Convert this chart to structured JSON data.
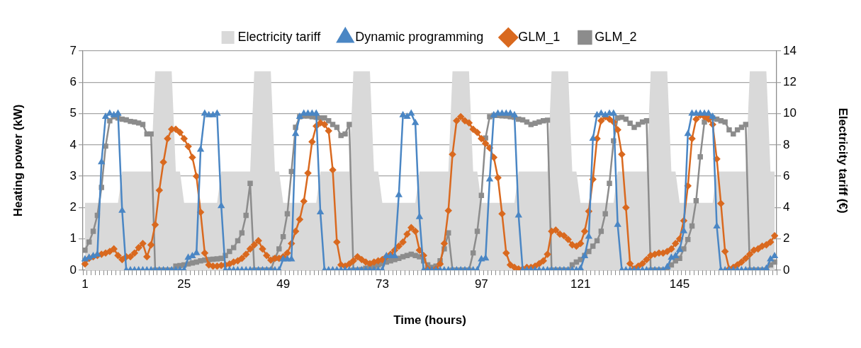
{
  "chart_data": {
    "type": "line",
    "xlabel": "Time (hours)",
    "ylabel": "Heating power (kW)",
    "y2label": "Electricity tariff (€)",
    "categories": [
      "1",
      null,
      null,
      null,
      null,
      null,
      null,
      null,
      null,
      null,
      null,
      null,
      null,
      null,
      null,
      null,
      null,
      null,
      null,
      null,
      null,
      null,
      null,
      null,
      "25",
      null,
      null,
      null,
      null,
      null,
      null,
      null,
      null,
      null,
      null,
      null,
      null,
      null,
      null,
      null,
      null,
      null,
      null,
      null,
      null,
      null,
      null,
      null,
      "49",
      null,
      null,
      null,
      null,
      null,
      null,
      null,
      null,
      null,
      null,
      null,
      null,
      null,
      null,
      null,
      null,
      null,
      null,
      null,
      null,
      null,
      null,
      null,
      "73",
      null,
      null,
      null,
      null,
      null,
      null,
      null,
      null,
      null,
      null,
      null,
      null,
      null,
      null,
      null,
      null,
      null,
      null,
      null,
      null,
      null,
      null,
      null,
      "97",
      null,
      null,
      null,
      null,
      null,
      null,
      null,
      null,
      null,
      null,
      null,
      null,
      null,
      null,
      null,
      null,
      null,
      null,
      null,
      null,
      null,
      null,
      null,
      "121",
      null,
      null,
      null,
      null,
      null,
      null,
      null,
      null,
      null,
      null,
      null,
      null,
      null,
      null,
      null,
      null,
      null,
      null,
      null,
      null,
      null,
      null,
      null,
      "145",
      null,
      null,
      null,
      null,
      null,
      null,
      null,
      null,
      null,
      null,
      null,
      null,
      null,
      null,
      null,
      null,
      null,
      null,
      null,
      null,
      null,
      null,
      null
    ],
    "ylim": [
      0,
      7
    ],
    "yticks": [
      0,
      1,
      2,
      3,
      4,
      5,
      6,
      7
    ],
    "y2lim": [
      0,
      14
    ],
    "y2ticks": [
      0,
      2,
      4,
      6,
      8,
      10,
      12,
      14
    ],
    "grid": "y",
    "legend": "top",
    "series": [
      {
        "name": "Electricity tariff",
        "type": "area",
        "axis": "y2",
        "color": "#d9d9d9",
        "values": [
          4.3,
          4.3,
          4.3,
          4.3,
          4.3,
          4.3,
          4.3,
          4.3,
          4.3,
          6.3,
          6.3,
          6.3,
          6.3,
          6.3,
          6.3,
          6.3,
          6.3,
          12.7,
          12.7,
          12.7,
          12.7,
          12.7,
          6.3,
          6.3,
          4.3,
          4.3,
          4.3,
          4.3,
          4.3,
          4.3,
          4.3,
          4.3,
          4.3,
          6.3,
          6.3,
          6.3,
          6.3,
          6.3,
          6.3,
          6.3,
          6.3,
          12.7,
          12.7,
          12.7,
          12.7,
          12.7,
          6.3,
          6.3,
          4.3,
          4.3,
          4.3,
          4.3,
          4.3,
          4.3,
          4.3,
          4.3,
          4.3,
          6.3,
          6.3,
          6.3,
          6.3,
          6.3,
          6.3,
          6.3,
          6.3,
          12.7,
          12.7,
          12.7,
          12.7,
          12.7,
          6.3,
          6.3,
          4.3,
          4.3,
          4.3,
          4.3,
          4.3,
          4.3,
          4.3,
          4.3,
          4.3,
          6.3,
          6.3,
          6.3,
          6.3,
          6.3,
          6.3,
          6.3,
          6.3,
          12.7,
          12.7,
          12.7,
          12.7,
          12.7,
          6.3,
          6.3,
          4.3,
          4.3,
          4.3,
          4.3,
          4.3,
          4.3,
          4.3,
          4.3,
          4.3,
          6.3,
          6.3,
          6.3,
          6.3,
          6.3,
          6.3,
          6.3,
          6.3,
          12.7,
          12.7,
          12.7,
          12.7,
          12.7,
          6.3,
          6.3,
          4.3,
          4.3,
          4.3,
          4.3,
          4.3,
          4.3,
          4.3,
          4.3,
          4.3,
          6.3,
          6.3,
          6.3,
          6.3,
          6.3,
          6.3,
          6.3,
          6.3,
          12.7,
          12.7,
          12.7,
          12.7,
          12.7,
          6.3,
          6.3,
          4.3,
          4.3,
          4.3,
          4.3,
          4.3,
          4.3,
          4.3,
          4.3,
          4.3,
          6.3,
          6.3,
          6.3,
          6.3,
          6.3,
          6.3,
          6.3,
          6.3,
          12.7,
          12.7,
          12.7,
          12.7,
          12.7,
          6.3,
          6.3
        ]
      },
      {
        "name": "Dynamic programming",
        "marker": "triangle",
        "color": "#4a86c4",
        "values": [
          0.35,
          0.4,
          0.45,
          0.5,
          3.45,
          4.9,
          5.0,
          4.95,
          5.0,
          1.9,
          0,
          0,
          0,
          0,
          0,
          0,
          0,
          0,
          0,
          0,
          0,
          0,
          0,
          0,
          0,
          0.4,
          0.45,
          0.55,
          3.85,
          5.0,
          4.95,
          4.95,
          5.0,
          2.05,
          0,
          0,
          0,
          0,
          0,
          0,
          0,
          0,
          0,
          0,
          0,
          0,
          0,
          0,
          0.35,
          0.35,
          0.35,
          4.35,
          4.9,
          5.0,
          5.0,
          5.0,
          5.0,
          1.85,
          0,
          0,
          0,
          0,
          0,
          0,
          0,
          0,
          0,
          0,
          0,
          0,
          0,
          0,
          0,
          0.45,
          0.45,
          0.45,
          2.4,
          4.95,
          4.9,
          5.0,
          4.7,
          1.7,
          0,
          0,
          0,
          0,
          0,
          0,
          0,
          0,
          0,
          0,
          0,
          0,
          0,
          0,
          0.35,
          0.38,
          2.9,
          4.95,
          5.0,
          5.0,
          5.0,
          5.0,
          4.95,
          1.75,
          0,
          0,
          0,
          0,
          0,
          0,
          0,
          0,
          0,
          0,
          0,
          0,
          0,
          0,
          0.05,
          0.45,
          1.07,
          4.2,
          4.95,
          5.0,
          4.95,
          5.0,
          5.0,
          1.45,
          0,
          0,
          0,
          0,
          0,
          0,
          0,
          0,
          0,
          0,
          0,
          0.1,
          0.4,
          0.45,
          0.65,
          1.25,
          4.35,
          5.0,
          5.0,
          5.0,
          5.0,
          5.0,
          4.9,
          1.4,
          0,
          0,
          0,
          0,
          0,
          0,
          0,
          0,
          0,
          0,
          0,
          0.05,
          0.35,
          0.45
        ]
      },
      {
        "name": "GLM_1",
        "marker": "diamond",
        "color": "#d9691f",
        "values": [
          0.2,
          0.38,
          0.43,
          0.47,
          0.51,
          0.55,
          0.6,
          0.68,
          0.47,
          0.34,
          0.43,
          0.43,
          0.55,
          0.72,
          0.85,
          0.43,
          0.81,
          1.45,
          2.55,
          3.45,
          4.2,
          4.5,
          4.5,
          4.4,
          4.2,
          3.95,
          3.6,
          3.0,
          1.85,
          0.55,
          0.17,
          0.13,
          0.13,
          0.15,
          0.17,
          0.2,
          0.26,
          0.3,
          0.38,
          0.51,
          0.68,
          0.81,
          0.94,
          0.68,
          0.47,
          0.32,
          0.38,
          0.38,
          0.43,
          0.55,
          0.85,
          1.24,
          1.62,
          2.2,
          3.1,
          4.1,
          4.6,
          4.7,
          4.65,
          4.45,
          3.2,
          0.9,
          0.17,
          0.13,
          0.2,
          0.3,
          0.43,
          0.34,
          0.26,
          0.21,
          0.26,
          0.3,
          0.34,
          0.43,
          0.51,
          0.64,
          0.77,
          0.9,
          1.15,
          1.36,
          1.24,
          0.64,
          0.47,
          0.04,
          0,
          0.04,
          0.2,
          0.85,
          1.9,
          3.7,
          4.77,
          4.9,
          4.77,
          4.7,
          4.5,
          4.4,
          4.2,
          4.05,
          3.9,
          3.6,
          2.95,
          1.8,
          0.55,
          0.17,
          0.09,
          0.04,
          0.04,
          0.09,
          0.09,
          0.13,
          0.21,
          0.3,
          0.51,
          1.24,
          1.28,
          1.15,
          1.1,
          0.98,
          0.81,
          0.77,
          0.85,
          1.24,
          1.88,
          2.9,
          4.2,
          4.77,
          4.9,
          4.82,
          4.73,
          4.48,
          3.7,
          2.0,
          0.21,
          0.04,
          0.13,
          0.21,
          0.34,
          0.47,
          0.51,
          0.55,
          0.55,
          0.6,
          0.68,
          0.85,
          1.0,
          1.58,
          2.69,
          4.2,
          4.82,
          4.95,
          4.9,
          4.82,
          4.65,
          3.55,
          2.13,
          0.6,
          0.04,
          0.09,
          0.17,
          0.26,
          0.38,
          0.51,
          0.64,
          0.68,
          0.77,
          0.81,
          0.9,
          1.1
        ]
      },
      {
        "name": "GLM_2",
        "marker": "square",
        "color": "#8c8c8c",
        "values": [
          0.64,
          0.9,
          1.24,
          1.75,
          2.64,
          3.96,
          4.77,
          4.9,
          4.86,
          4.82,
          4.8,
          4.75,
          4.73,
          4.7,
          4.65,
          4.35,
          4.35,
          0,
          0,
          0,
          0,
          0,
          0.13,
          0.15,
          0.17,
          0.2,
          0.23,
          0.26,
          0.3,
          0.32,
          0.34,
          0.35,
          0.36,
          0.38,
          0.47,
          0.6,
          0.72,
          0.94,
          1.19,
          1.75,
          2.77,
          0,
          0,
          0,
          0,
          0,
          0.38,
          0.68,
          1.07,
          1.8,
          3.15,
          4.56,
          4.9,
          4.92,
          4.92,
          4.9,
          4.88,
          4.86,
          4.86,
          4.77,
          4.65,
          4.56,
          4.3,
          4.35,
          4.65,
          0,
          0,
          0.02,
          0.06,
          0.1,
          0.13,
          0.17,
          0.21,
          0.26,
          0.3,
          0.34,
          0.38,
          0.43,
          0.47,
          0.51,
          0.47,
          0.43,
          0.3,
          0.17,
          0.09,
          0.13,
          0.3,
          0.68,
          1.19,
          0,
          0,
          0,
          0,
          0,
          0.55,
          1.24,
          2.39,
          4.22,
          4.9,
          4.94,
          4.94,
          4.93,
          4.92,
          4.9,
          4.88,
          4.82,
          4.8,
          4.73,
          4.65,
          4.69,
          4.73,
          4.77,
          4.79,
          0,
          0,
          0,
          0,
          0,
          0.17,
          0.26,
          0.34,
          0.47,
          0.6,
          0.77,
          0.94,
          1.24,
          1.8,
          2.77,
          4.13,
          4.86,
          4.88,
          4.82,
          4.69,
          4.56,
          4.65,
          4.73,
          4.77,
          0,
          0,
          0,
          0,
          0,
          0.17,
          0.3,
          0.38,
          0.68,
          0.98,
          1.41,
          2.22,
          3.62,
          4.73,
          4.9,
          4.86,
          4.82,
          4.77,
          4.73,
          4.48,
          4.35,
          4.48,
          4.56,
          4.65,
          0,
          0,
          0,
          0,
          0,
          0.17,
          0.26
        ]
      }
    ]
  }
}
